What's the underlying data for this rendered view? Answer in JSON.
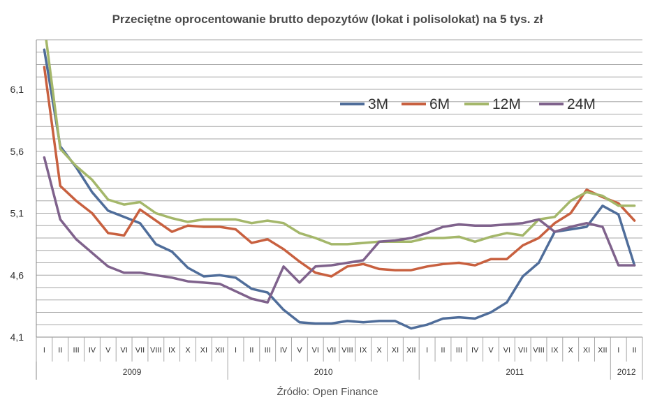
{
  "title": "Przeciętne oprocentowanie brutto depozytów (lokat i polisolokat) na 5 tys. zł",
  "source": "Źródło: Open Finance",
  "colors": {
    "3M": "#4f6d9a",
    "6M": "#c8603f",
    "12M": "#a4b76a",
    "24M": "#7f628c",
    "grid": "#a6a6a6",
    "axis": "#888888"
  },
  "chart_data": {
    "type": "line",
    "title": "Przeciętne oprocentowanie brutto depozytów (lokat i polisolokat) na 5 tys. zł",
    "xlabel": "",
    "ylabel": "",
    "ylim": [
      4.1,
      6.5
    ],
    "yticks": [
      4.1,
      4.6,
      5.1,
      5.6,
      6.1
    ],
    "grid": true,
    "legend_position": "top-right",
    "categories": [
      "I",
      "II",
      "III",
      "IV",
      "V",
      "VI",
      "VII",
      "VIII",
      "IX",
      "X",
      "XI",
      "XII",
      "I",
      "II",
      "III",
      "IV",
      "V",
      "VI",
      "VII",
      "VIII",
      "IX",
      "X",
      "XI",
      "XII",
      "I",
      "II",
      "III",
      "IV",
      "V",
      "VI",
      "VII",
      "VIII",
      "IX",
      "X",
      "XI",
      "XII",
      "I",
      "II"
    ],
    "years": [
      {
        "label": "2009",
        "start": 0,
        "end": 11
      },
      {
        "label": "2010",
        "start": 12,
        "end": 23
      },
      {
        "label": "2011",
        "start": 24,
        "end": 35
      },
      {
        "label": "2012",
        "start": 36,
        "end": 37
      }
    ],
    "series": [
      {
        "name": "3M",
        "values": [
          6.42,
          5.64,
          5.47,
          5.27,
          5.12,
          5.07,
          5.02,
          4.85,
          4.79,
          4.66,
          4.59,
          4.6,
          4.58,
          4.49,
          4.46,
          4.32,
          4.22,
          4.21,
          4.21,
          4.23,
          4.22,
          4.23,
          4.23,
          4.17,
          4.2,
          4.25,
          4.26,
          4.25,
          4.3,
          4.38,
          4.59,
          4.7,
          4.95,
          4.97,
          4.99,
          5.16,
          5.09,
          4.68
        ]
      },
      {
        "name": "6M",
        "values": [
          6.28,
          5.32,
          5.2,
          5.1,
          4.94,
          4.92,
          5.13,
          5.04,
          4.95,
          5.0,
          4.99,
          4.99,
          4.97,
          4.86,
          4.89,
          4.81,
          4.71,
          4.62,
          4.59,
          4.67,
          4.69,
          4.65,
          4.64,
          4.64,
          4.67,
          4.69,
          4.7,
          4.68,
          4.73,
          4.73,
          4.84,
          4.9,
          5.02,
          5.1,
          5.29,
          5.23,
          5.18,
          5.04
        ]
      },
      {
        "name": "12M",
        "values": [
          6.62,
          5.62,
          5.48,
          5.37,
          5.21,
          5.17,
          5.19,
          5.1,
          5.06,
          5.03,
          5.05,
          5.05,
          5.05,
          5.02,
          5.04,
          5.02,
          4.94,
          4.9,
          4.85,
          4.85,
          4.86,
          4.87,
          4.87,
          4.87,
          4.9,
          4.9,
          4.91,
          4.87,
          4.91,
          4.94,
          4.92,
          5.05,
          5.07,
          5.2,
          5.27,
          5.24,
          5.16,
          5.16
        ]
      },
      {
        "name": "24M",
        "values": [
          5.55,
          5.05,
          4.89,
          4.78,
          4.67,
          4.62,
          4.62,
          4.6,
          4.58,
          4.55,
          4.54,
          4.53,
          4.47,
          4.41,
          4.38,
          4.67,
          4.54,
          4.67,
          4.68,
          4.7,
          4.72,
          4.87,
          4.88,
          4.9,
          4.94,
          4.99,
          5.01,
          5.0,
          5.0,
          5.01,
          5.02,
          5.05,
          4.95,
          4.99,
          5.02,
          4.99,
          4.68,
          4.68
        ]
      }
    ]
  }
}
